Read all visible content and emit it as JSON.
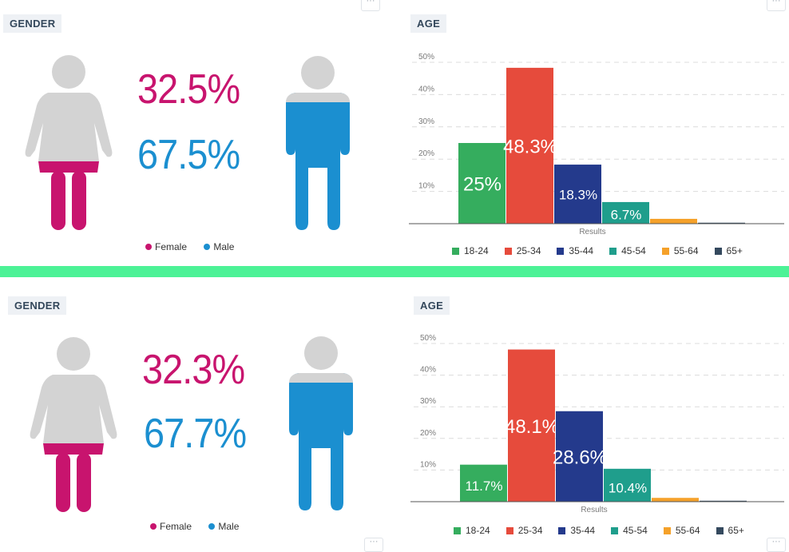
{
  "panels": [
    {
      "gender": {
        "tag": "GENDER",
        "female_pct": "32.5%",
        "male_pct": "67.5%",
        "legend": [
          {
            "label": "Female",
            "color": "#c8146e"
          },
          {
            "label": "Male",
            "color": "#1b8fd0"
          }
        ]
      },
      "age": {
        "tag": "AGE",
        "menu_icon": "more-dots-icon"
      }
    },
    {
      "gender": {
        "tag": "GENDER",
        "female_pct": "32.3%",
        "male_pct": "67.7%",
        "legend": [
          {
            "label": "Female",
            "color": "#c8146e"
          },
          {
            "label": "Male",
            "color": "#1b8fd0"
          }
        ]
      },
      "age": {
        "tag": "AGE",
        "menu_icon": "more-dots-icon"
      }
    }
  ],
  "colors": {
    "female": "#c8146e",
    "male": "#1b8fd0",
    "figure_gray": "#d3d3d3",
    "divider": "#4cf296"
  },
  "chart_data": [
    {
      "type": "bar",
      "categories": [
        "18-24",
        "25-34",
        "35-44",
        "45-54",
        "55-64",
        "65+"
      ],
      "values": [
        25,
        48.3,
        18.3,
        6.7,
        1.5,
        0.3
      ],
      "data_labels": [
        "25%",
        "48.3%",
        "18.3%",
        "6.7%",
        "",
        ""
      ],
      "colors": [
        "#35ad5e",
        "#e64b3c",
        "#243a8c",
        "#1f9e8c",
        "#f5a12a",
        "#34495e"
      ],
      "xlabel": "Results",
      "yticks": [
        "10%",
        "20%",
        "30%",
        "40%",
        "50%"
      ],
      "ylim": [
        0,
        50
      ],
      "grid": true,
      "legend": "bottom"
    },
    {
      "type": "bar",
      "categories": [
        "18-24",
        "25-34",
        "35-44",
        "45-54",
        "55-64",
        "65+"
      ],
      "values": [
        11.7,
        48.1,
        28.6,
        10.4,
        1.2,
        0.3
      ],
      "data_labels": [
        "11.7%",
        "48.1%",
        "28.6%",
        "10.4%",
        "",
        ""
      ],
      "colors": [
        "#35ad5e",
        "#e64b3c",
        "#243a8c",
        "#1f9e8c",
        "#f5a12a",
        "#34495e"
      ],
      "xlabel": "Results",
      "yticks": [
        "10%",
        "20%",
        "30%",
        "40%",
        "50%"
      ],
      "ylim": [
        0,
        50
      ],
      "grid": true,
      "legend": "bottom"
    }
  ]
}
